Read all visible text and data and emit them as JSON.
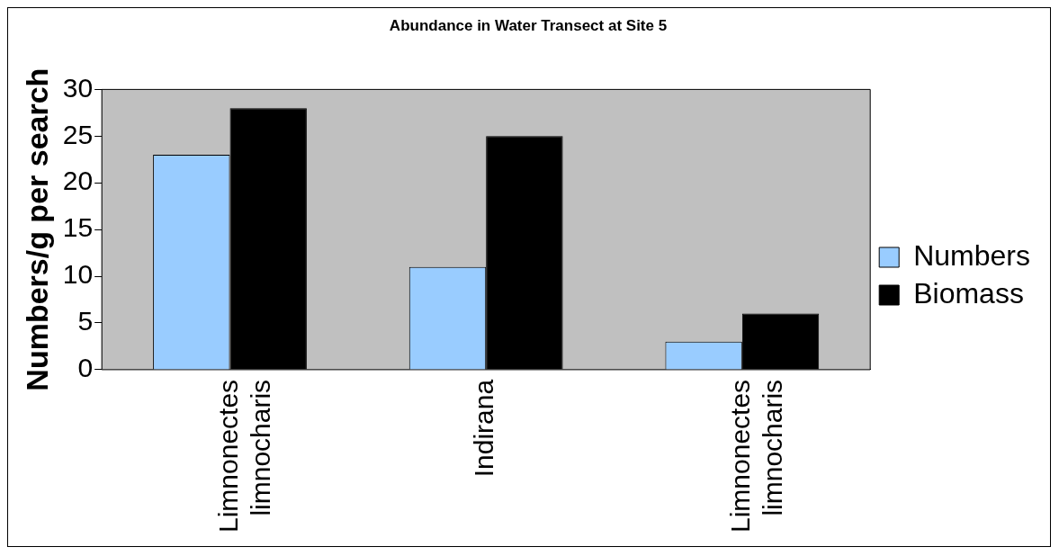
{
  "chart_data": {
    "type": "bar",
    "title": "Abundance in Water Transect at Site 5",
    "ylabel": "Numbers/g per search",
    "categories": [
      "Limnonectes limnocharis",
      "Indirana",
      "Limnonectes limnocharis"
    ],
    "series": [
      {
        "name": "Numbers",
        "color": "#99ccff",
        "values": [
          23,
          11,
          3
        ]
      },
      {
        "name": "Biomass",
        "color": "#000000",
        "values": [
          28,
          25,
          6
        ]
      }
    ],
    "ylim": [
      0,
      30
    ],
    "yticks": [
      0,
      5,
      10,
      15,
      20,
      25,
      30
    ],
    "grid": false,
    "legend": "right"
  }
}
